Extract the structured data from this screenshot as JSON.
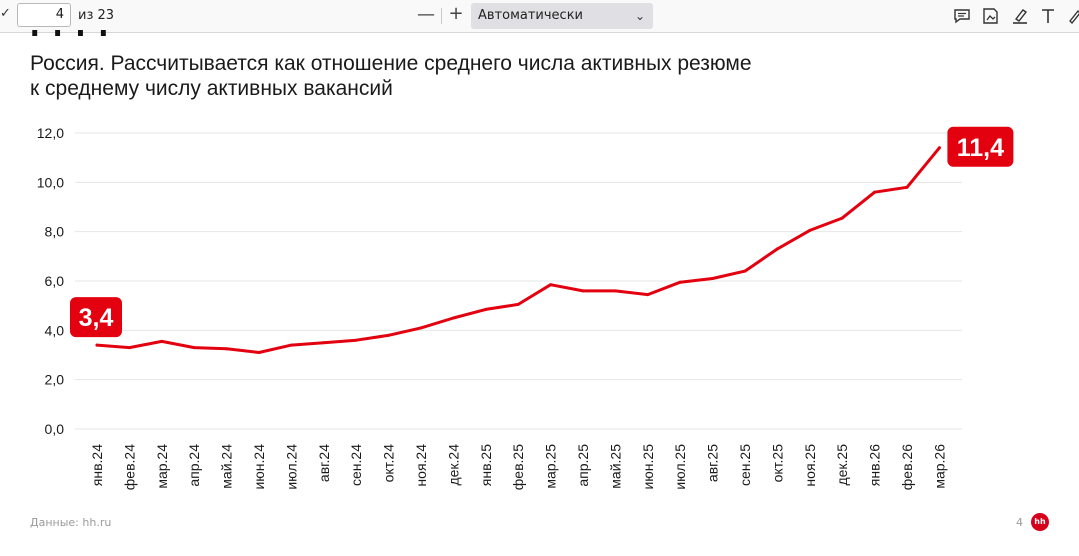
{
  "viewer": {
    "page_number": "4",
    "page_of": "из 23",
    "zoom_label": "Автоматически",
    "zoom_out_symbol": "—",
    "zoom_in_symbol": "+"
  },
  "slide": {
    "title_fragment": "I   I        I   I",
    "subtitle_line1": "Россия. Рассчитывается как отношение среднего числа активных резюме",
    "subtitle_line2": "к среднему числу активных вакансий",
    "source": "Данные: hh.ru",
    "page": "4",
    "logo_text": "hh"
  },
  "colors": {
    "line": "#e3000f",
    "grid": "#e6e6e6",
    "text": "#1a1a1a",
    "label_bg": "#e3000f",
    "label_text": "#ffffff"
  },
  "chart_data": {
    "type": "line",
    "title": "",
    "xlabel": "",
    "ylabel": "",
    "ylim": [
      0,
      12
    ],
    "y_ticks": [
      "0,0",
      "2,0",
      "4,0",
      "6,0",
      "8,0",
      "10,0",
      "12,0"
    ],
    "grid": true,
    "categories": [
      "янв.24",
      "фев.24",
      "мар.24",
      "апр.24",
      "май.24",
      "июн.24",
      "июл.24",
      "авг.24",
      "сен.24",
      "окт.24",
      "ноя.24",
      "дек.24",
      "янв.25",
      "фев.25",
      "мар.25",
      "апр.25",
      "май.25",
      "июн.25",
      "июл.25",
      "авг.25",
      "сен.25",
      "окт.25",
      "ноя.25",
      "дек.25",
      "янв.26",
      "фев.26",
      "мар.26"
    ],
    "values": [
      3.4,
      3.3,
      3.55,
      3.3,
      3.25,
      3.1,
      3.4,
      3.5,
      3.6,
      3.8,
      4.1,
      4.5,
      4.85,
      5.05,
      5.85,
      5.6,
      5.6,
      5.45,
      5.95,
      6.1,
      6.4,
      7.3,
      8.05,
      8.55,
      9.6,
      9.8,
      11.4
    ],
    "annotations": [
      {
        "index": 0,
        "text": "3,4"
      },
      {
        "index": 26,
        "text": "11,4"
      }
    ]
  }
}
